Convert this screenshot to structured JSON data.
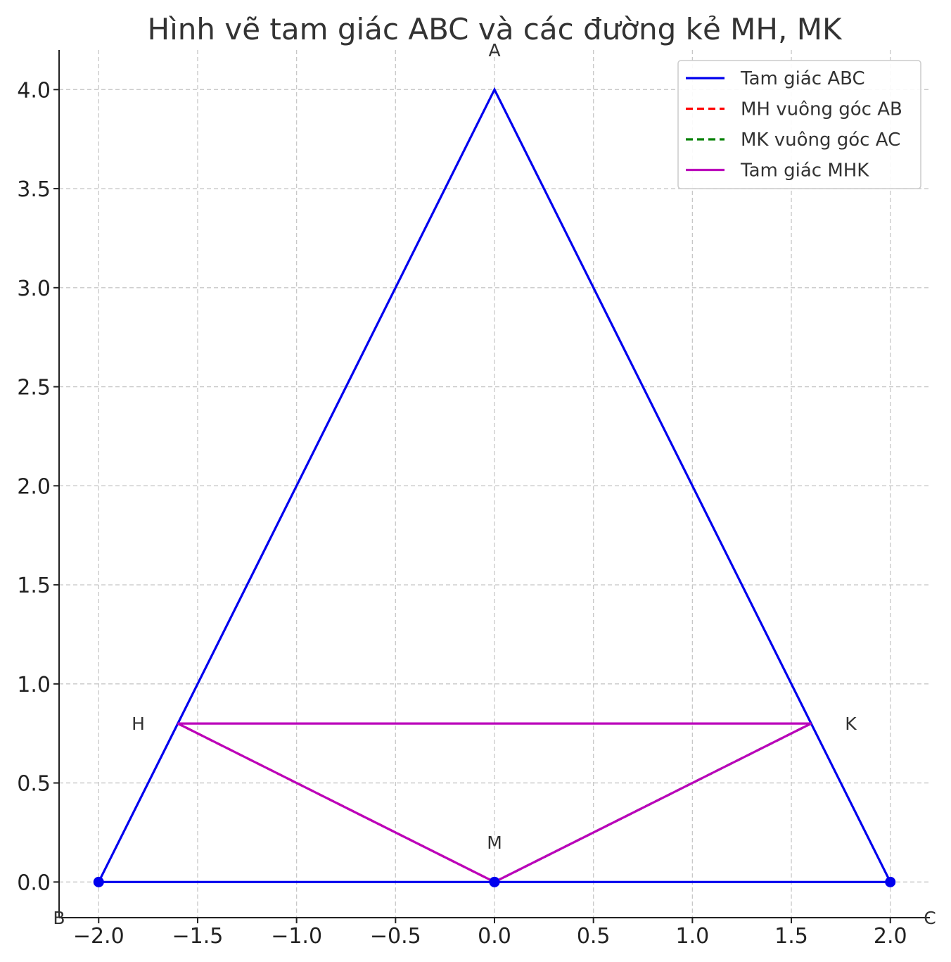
{
  "chart_data": {
    "type": "line",
    "title": "Hình vẽ tam giác ABC và các đường kẻ MH, MK",
    "xlabel": "",
    "ylabel": "",
    "xlim": [
      -2.2,
      2.2
    ],
    "ylim": [
      -0.18,
      4.2
    ],
    "xticks": [
      -2.0,
      -1.5,
      -1.0,
      -0.5,
      0.0,
      0.5,
      1.0,
      1.5,
      2.0
    ],
    "yticks": [
      0.0,
      0.5,
      1.0,
      1.5,
      2.0,
      2.5,
      3.0,
      3.5,
      4.0
    ],
    "xtick_labels": [
      "−2.0",
      "−1.5",
      "−1.0",
      "−0.5",
      "0.0",
      "0.5",
      "1.0",
      "1.5",
      "2.0"
    ],
    "ytick_labels": [
      "0.0",
      "0.5",
      "1.0",
      "1.5",
      "2.0",
      "2.5",
      "3.0",
      "3.5",
      "4.0"
    ],
    "grid": true,
    "legend_position": "top-right",
    "series": [
      {
        "name": "Tam giác ABC",
        "color": "#0000ee",
        "style": "solid",
        "x": [
          -2,
          0,
          2,
          -2
        ],
        "y": [
          0,
          4,
          0,
          0
        ]
      },
      {
        "name": "MH vuông góc AB",
        "color": "#ff0000",
        "style": "dashed",
        "x": [
          0,
          -1.6
        ],
        "y": [
          0,
          0.8
        ]
      },
      {
        "name": "MK vuông góc AC",
        "color": "#008000",
        "style": "dashed",
        "x": [
          0,
          1.6
        ],
        "y": [
          0,
          0.8
        ]
      },
      {
        "name": "Tam giác MHK",
        "color": "#bb00bb",
        "style": "solid",
        "x": [
          0,
          -1.6,
          1.6,
          0
        ],
        "y": [
          0,
          0.8,
          0.8,
          0
        ]
      }
    ],
    "markers": [
      {
        "x": -2,
        "y": 0,
        "color": "#0000ee"
      },
      {
        "x": 0,
        "y": 0,
        "color": "#0000ee"
      },
      {
        "x": 2,
        "y": 0,
        "color": "#0000ee"
      }
    ],
    "point_labels": [
      {
        "text": "A",
        "x": 0,
        "y": 4.2
      },
      {
        "text": "B",
        "x": -2.2,
        "y": -0.18
      },
      {
        "text": "C",
        "x": 2.2,
        "y": -0.18
      },
      {
        "text": "M",
        "x": 0,
        "y": 0.2
      },
      {
        "text": "H",
        "x": -1.8,
        "y": 0.8
      },
      {
        "text": "K",
        "x": 1.8,
        "y": 0.8
      }
    ]
  }
}
